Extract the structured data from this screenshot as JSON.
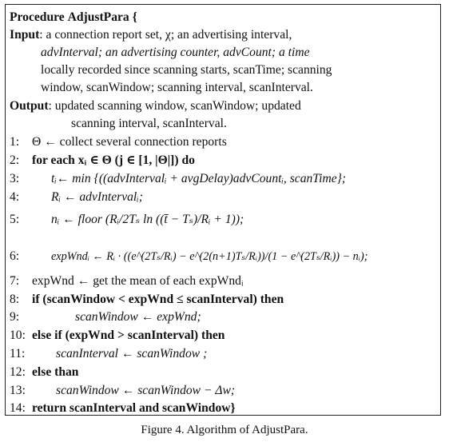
{
  "algorithm": {
    "title_keyword": "Procedure",
    "title_name": "AdjustPara",
    "title_brace": "{",
    "input": {
      "label": "Input",
      "lines": [
        ": a connection report set, χ; an advertising interval,",
        "advInterval; an advertising counter, advCount; a time",
        "locally recorded since scanning starts, scanTime; scanning",
        "window, scanWindow; scanning interval, scanInterval."
      ]
    },
    "output": {
      "label": "Output",
      "lines": [
        ": updated scanning window, scanWindow; updated",
        "scanning interval, scanInterval."
      ]
    },
    "steps": [
      {
        "num": "1:",
        "text": "Θ ← collect several connection reports"
      },
      {
        "num": "2:",
        "text": "for each xᵢ ∈ Θ (j ∈ [1, |Θ|]) do"
      },
      {
        "num": "3:",
        "text": "tᵢ← min {((advIntervalᵢ + avgDelay)advCountᵢ, scanTime};"
      },
      {
        "num": "4:",
        "text": "Rᵢ ← advIntervalᵢ;"
      },
      {
        "num": "5:",
        "text": "nᵢ ← floor (Rᵢ/2Tₛ ln ((t̄ − Tₛ)/Rᵢ + 1));"
      },
      {
        "num": "6:",
        "text": "expWndᵢ ← Rᵢ · ((e^(2Tₛ/Rᵢ) − e^(2(n+1)Tₛ/Rᵢ))/(1 − e^(2Tₛ/Rᵢ)) − nᵢ);"
      },
      {
        "num": "7:",
        "text": "expWnd ← get the mean of each expWndᵢ"
      },
      {
        "num": "8:",
        "text": "if (scanWindow < expWnd ≤ scanInterval) then"
      },
      {
        "num": "9:",
        "text": "scanWindow ← expWnd;"
      },
      {
        "num": "10:",
        "text": "else if (expWnd > scanInterval) then"
      },
      {
        "num": "11:",
        "text": "scanInterval ← scanWindow ;"
      },
      {
        "num": "12:",
        "text": "else than"
      },
      {
        "num": "13:",
        "text": "scanWindow ← scanWindow − Δw;"
      },
      {
        "num": "14:",
        "text": "return scanInterval and scanWindow}"
      }
    ]
  },
  "caption": "Figure 4.   Algorithm of AdjustPara."
}
